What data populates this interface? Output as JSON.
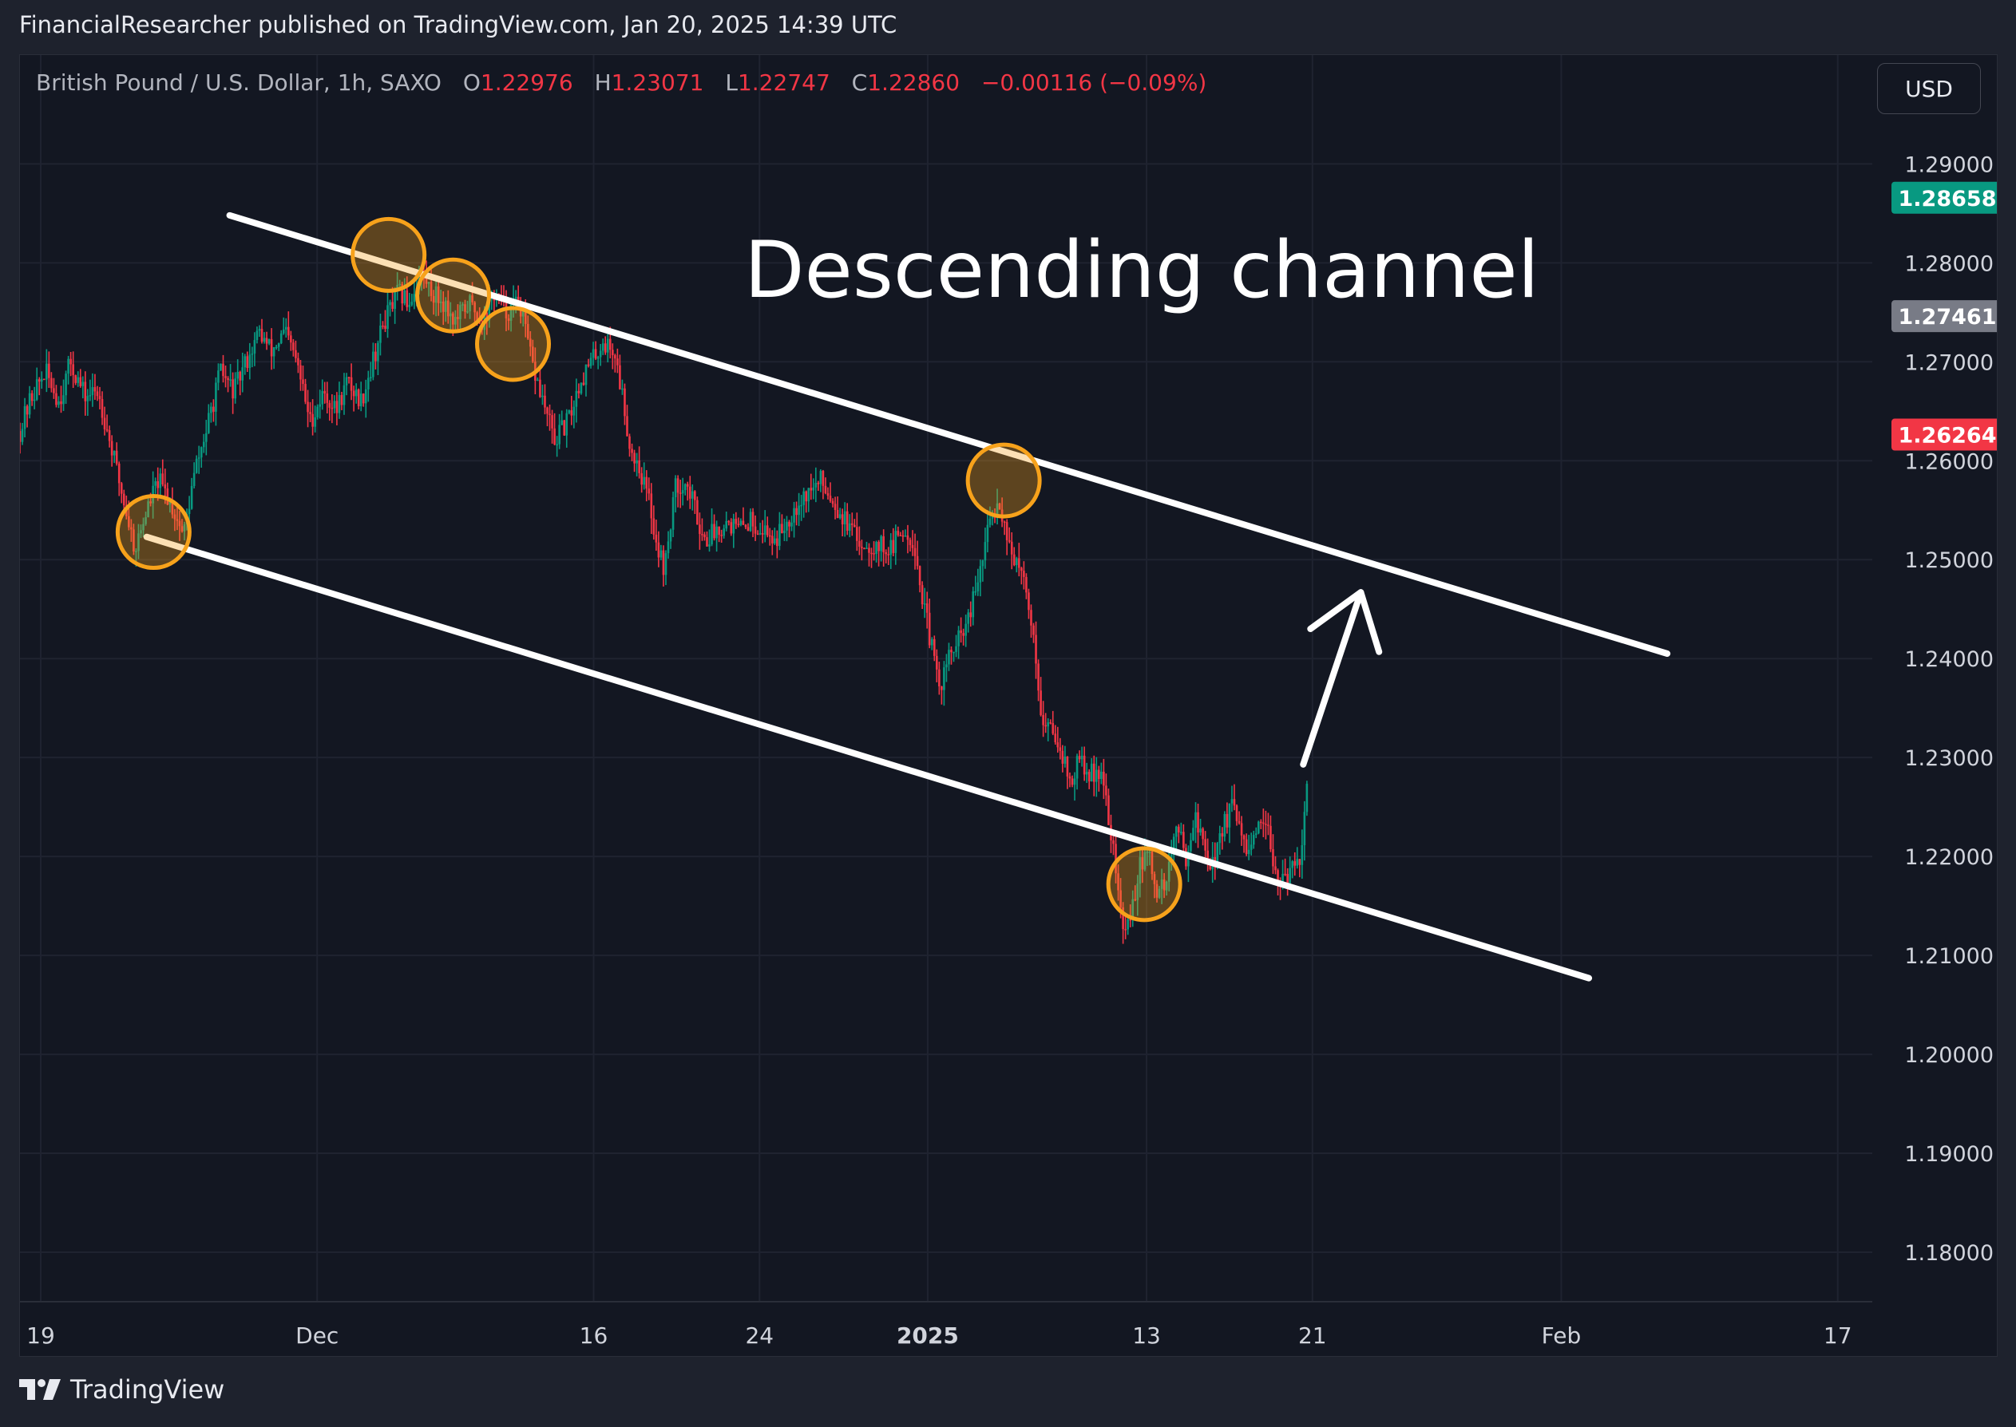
{
  "header": {
    "publish_line": "FinancialResearcher published on TradingView.com, Jan 20, 2025 14:39 UTC"
  },
  "legend": {
    "symbol": "British Pound / U.S. Dollar, 1h, SAXO",
    "o_label": "O",
    "o_value": "1.22976",
    "h_label": "H",
    "h_value": "1.23071",
    "l_label": "L",
    "l_value": "1.22747",
    "c_label": "C",
    "c_value": "1.22860",
    "change": "−0.00116 (−0.09%)"
  },
  "currency_button": "USD",
  "footer": {
    "logo_text": "TradingView"
  },
  "colors": {
    "background": "#131722",
    "up": "#089981",
    "down": "#f23645",
    "grid": "#1f2330",
    "channel_lines": "#ffffff",
    "touch_circles": "#f7a21b"
  },
  "chart_data": {
    "type": "line",
    "title": "",
    "annotation": "Descending channel",
    "x_labels": [
      {
        "day": 19,
        "text": "19",
        "bold": false
      },
      {
        "day": 31,
        "text": "Dec",
        "bold": false
      },
      {
        "day": 43,
        "text": "16",
        "bold": false
      },
      {
        "day": 50.2,
        "text": "24",
        "bold": false
      },
      {
        "day": 57.5,
        "text": "2025",
        "bold": true
      },
      {
        "day": 67,
        "text": "13",
        "bold": false
      },
      {
        "day": 74.2,
        "text": "21",
        "bold": false
      },
      {
        "day": 85,
        "text": "Feb",
        "bold": false
      },
      {
        "day": 97,
        "text": "17",
        "bold": false
      }
    ],
    "y_ticks": [
      "1.18000",
      "1.19000",
      "1.20000",
      "1.21000",
      "1.22000",
      "1.23000",
      "1.24000",
      "1.25000",
      "1.26000",
      "1.27000",
      "1.28000",
      "1.29000"
    ],
    "y_range": [
      1.175,
      1.301
    ],
    "x_range": [
      18.1,
      98.5
    ],
    "price_badges": [
      {
        "value": 1.28658,
        "text": "1.28658",
        "color": "#089981"
      },
      {
        "value": 1.27461,
        "text": "1.27461",
        "color": "#787b86"
      },
      {
        "value": 1.26264,
        "text": "1.26264",
        "color": "#f23645"
      }
    ],
    "price_series": {
      "name": "",
      "points": [
        [
          18.1,
          1.263
        ],
        [
          18.6,
          1.2665
        ],
        [
          19.2,
          1.269
        ],
        [
          19.8,
          1.266
        ],
        [
          20.3,
          1.27
        ],
        [
          20.9,
          1.2665
        ],
        [
          21.5,
          1.267
        ],
        [
          22.0,
          1.262
        ],
        [
          22.6,
          1.256
        ],
        [
          23.1,
          1.251
        ],
        [
          23.6,
          1.255
        ],
        [
          24.1,
          1.258
        ],
        [
          24.6,
          1.256
        ],
        [
          25.2,
          1.2525
        ],
        [
          25.7,
          1.259
        ],
        [
          26.3,
          1.264
        ],
        [
          26.8,
          1.269
        ],
        [
          27.4,
          1.267
        ],
        [
          27.9,
          1.27
        ],
        [
          28.5,
          1.273
        ],
        [
          29.0,
          1.271
        ],
        [
          29.6,
          1.273
        ],
        [
          30.1,
          1.27
        ],
        [
          30.7,
          1.264
        ],
        [
          31.3,
          1.267
        ],
        [
          31.8,
          1.265
        ],
        [
          32.3,
          1.268
        ],
        [
          32.9,
          1.266
        ],
        [
          33.4,
          1.27
        ],
        [
          33.9,
          1.274
        ],
        [
          34.5,
          1.277
        ],
        [
          35.0,
          1.276
        ],
        [
          35.5,
          1.279
        ],
        [
          36.0,
          1.277
        ],
        [
          36.5,
          1.276
        ],
        [
          37.0,
          1.274
        ],
        [
          37.6,
          1.276
        ],
        [
          38.2,
          1.274
        ],
        [
          38.7,
          1.277
        ],
        [
          39.2,
          1.275
        ],
        [
          39.8,
          1.276
        ],
        [
          40.3,
          1.27
        ],
        [
          40.8,
          1.266
        ],
        [
          41.3,
          1.262
        ],
        [
          41.9,
          1.264
        ],
        [
          42.4,
          1.268
        ],
        [
          42.9,
          1.27
        ],
        [
          43.4,
          1.272
        ],
        [
          43.9,
          1.271
        ],
        [
          44.3,
          1.266
        ],
        [
          44.6,
          1.261
        ],
        [
          44.9,
          1.26
        ],
        [
          45.4,
          1.256
        ],
        [
          45.8,
          1.251
        ],
        [
          46.1,
          1.249
        ],
        [
          46.5,
          1.257
        ],
        [
          46.9,
          1.258
        ],
        [
          47.3,
          1.256
        ],
        [
          47.8,
          1.252
        ],
        [
          48.3,
          1.253
        ],
        [
          48.8,
          1.254
        ],
        [
          49.3,
          1.253
        ],
        [
          49.8,
          1.254
        ],
        [
          50.4,
          1.253
        ],
        [
          50.9,
          1.252
        ],
        [
          51.4,
          1.254
        ],
        [
          51.9,
          1.256
        ],
        [
          52.4,
          1.257
        ],
        [
          52.9,
          1.258
        ],
        [
          53.4,
          1.256
        ],
        [
          53.9,
          1.254
        ],
        [
          54.4,
          1.252
        ],
        [
          54.9,
          1.2515
        ],
        [
          55.4,
          1.2515
        ],
        [
          55.9,
          1.251
        ],
        [
          56.4,
          1.253
        ],
        [
          56.9,
          1.252
        ],
        [
          57.2,
          1.247
        ],
        [
          57.6,
          1.242
        ],
        [
          58.0,
          1.237
        ],
        [
          58.4,
          1.24
        ],
        [
          58.9,
          1.242
        ],
        [
          59.3,
          1.244
        ],
        [
          59.8,
          1.249
        ],
        [
          60.2,
          1.254
        ],
        [
          60.6,
          1.256
        ],
        [
          61.0,
          1.252
        ],
        [
          61.4,
          1.249
        ],
        [
          61.8,
          1.247
        ],
        [
          62.2,
          1.24
        ],
        [
          62.5,
          1.233
        ],
        [
          62.9,
          1.233
        ],
        [
          63.3,
          1.231
        ],
        [
          63.7,
          1.227
        ],
        [
          64.1,
          1.23
        ],
        [
          64.5,
          1.228
        ],
        [
          64.9,
          1.229
        ],
        [
          65.3,
          1.225
        ],
        [
          65.7,
          1.218
        ],
        [
          66.0,
          1.212
        ],
        [
          66.3,
          1.214
        ],
        [
          66.7,
          1.219
        ],
        [
          67.1,
          1.22
        ],
        [
          67.5,
          1.216
        ],
        [
          67.9,
          1.218
        ],
        [
          68.3,
          1.223
        ],
        [
          68.7,
          1.22
        ],
        [
          69.1,
          1.224
        ],
        [
          69.5,
          1.221
        ],
        [
          69.9,
          1.219
        ],
        [
          70.3,
          1.223
        ],
        [
          70.7,
          1.225
        ],
        [
          71.1,
          1.222
        ],
        [
          71.5,
          1.22
        ],
        [
          71.9,
          1.223
        ],
        [
          72.3,
          1.222
        ],
        [
          72.7,
          1.218
        ],
        [
          73.1,
          1.217
        ],
        [
          73.4,
          1.22
        ],
        [
          73.7,
          1.22
        ],
        [
          74.0,
          1.229
        ]
      ]
    },
    "channel": {
      "upper_line": {
        "from": [
          27.2,
          1.2848
        ],
        "to": [
          89.6,
          1.2405
        ]
      },
      "lower_line": {
        "from": [
          23.6,
          1.2523
        ],
        "to": [
          86.2,
          1.2077
        ]
      }
    },
    "touch_points": [
      [
        23.9,
        1.2528
      ],
      [
        34.1,
        1.2808
      ],
      [
        36.9,
        1.2767
      ],
      [
        39.5,
        1.2718
      ],
      [
        60.8,
        1.258
      ],
      [
        66.9,
        1.2172
      ]
    ],
    "arrow": {
      "from": [
        73.8,
        1.2293
      ],
      "to": [
        76.3,
        1.2467
      ]
    }
  }
}
